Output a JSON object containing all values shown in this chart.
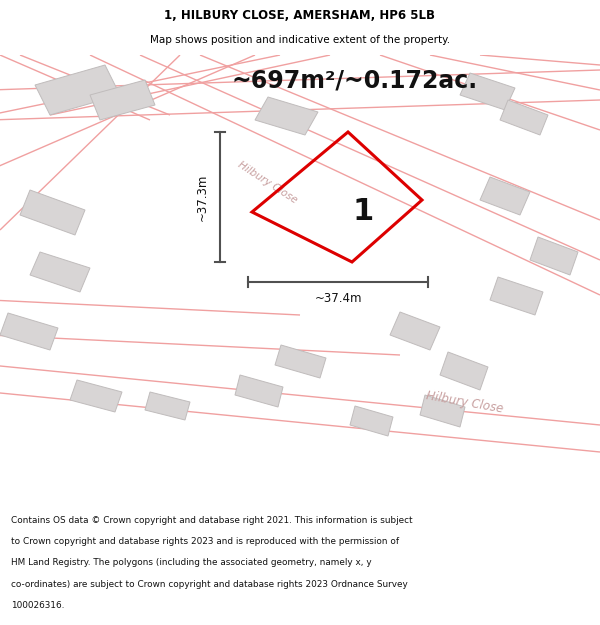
{
  "title_line1": "1, HILBURY CLOSE, AMERSHAM, HP6 5LB",
  "title_line2": "Map shows position and indicative extent of the property.",
  "area_text": "~697m²/~0.172ac.",
  "property_number": "1",
  "dim_horizontal": "~37.4m",
  "dim_vertical": "~37.3m",
  "road_label_upper": "Hilbury Close",
  "road_label_lower": "Hilbury Close",
  "footer_lines": [
    "Contains OS data © Crown copyright and database right 2021. This information is subject",
    "to Crown copyright and database rights 2023 and is reproduced with the permission of",
    "HM Land Registry. The polygons (including the associated geometry, namely x, y",
    "co-ordinates) are subject to Crown copyright and database rights 2023 Ordnance Survey",
    "100026316."
  ],
  "map_bg": "#f7f5f5",
  "property_edge_color": "#dd0000",
  "building_face_color": "#d8d5d5",
  "building_edge_color": "#c0bcbc",
  "road_line_color": "#f0a0a0",
  "dim_color": "#505050",
  "white": "#ffffff",
  "text_dark": "#111111",
  "road_label_color": "#c8a0a0"
}
